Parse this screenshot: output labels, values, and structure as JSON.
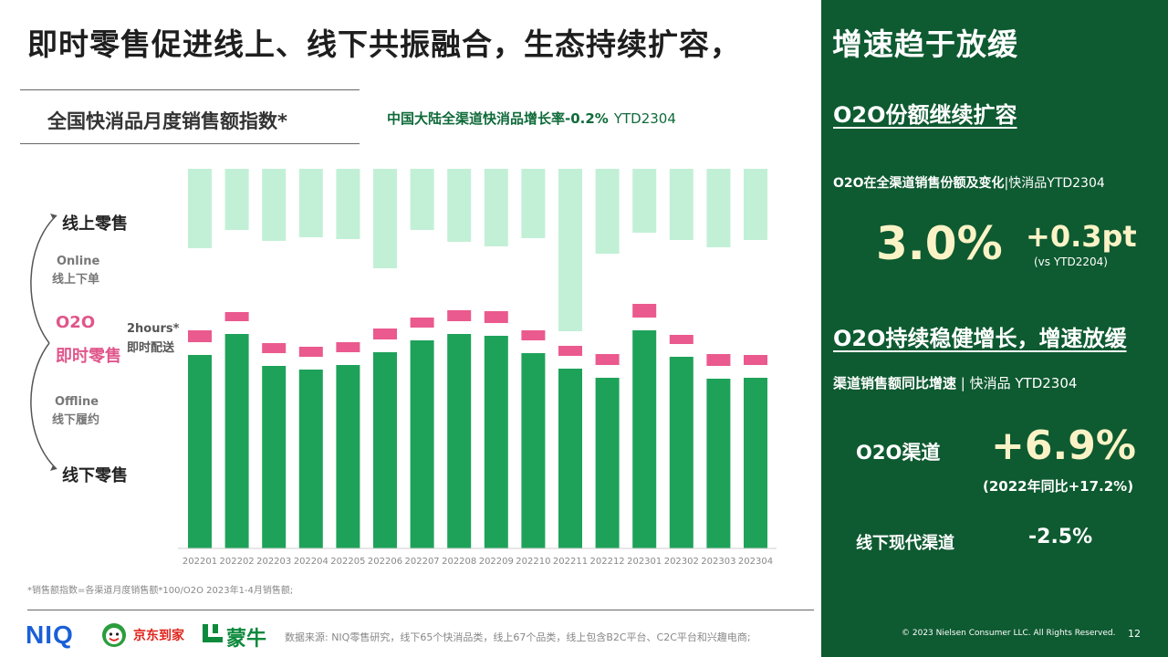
{
  "header": {
    "title_left": "即时零售促进线上、线下共振融合，生态持续扩容，",
    "title_right": "增速趋于放缓"
  },
  "chart_section": {
    "subtitle": "全国快消品月度销售额指数*",
    "growth_note_main": "中国大陆全渠道快消品增长率-0.2%",
    "growth_note_ytd": "YTD2304"
  },
  "side_labels": {
    "online_retail": "线上零售",
    "online_en": "Online",
    "online_cn": "线上下单",
    "o2o_en": "O2O",
    "o2o_cn": "即时零售",
    "hours": "2hours*",
    "instant_delivery": "即时配送",
    "offline_en": "Offline",
    "offline_cn": "线下履约",
    "offline_retail": "线下零售"
  },
  "chart_data": {
    "type": "bar",
    "categories": [
      "202201",
      "202202",
      "202203",
      "202204",
      "202205",
      "202206",
      "202207",
      "202208",
      "202209",
      "202210",
      "202211",
      "202212",
      "202301",
      "202302",
      "202303",
      "202304"
    ],
    "series": [
      {
        "values": [
          212,
          235,
          200,
          196,
          201,
          215,
          228,
          235,
          233,
          214,
          197,
          187,
          239,
          210,
          186,
          187
        ],
        "color": "#1ea25a"
      },
      {
        "values": [
          13,
          10,
          11,
          11,
          11,
          12,
          11,
          12,
          13,
          11,
          11,
          12,
          15,
          10,
          13,
          11
        ],
        "color": "#ea5a8e"
      },
      {
        "values": [
          87,
          67,
          79,
          75,
          77,
          109,
          67,
          80,
          85,
          76,
          178,
          93,
          70,
          78,
          86,
          78
        ],
        "color": "#c2f0d6"
      }
    ]
  },
  "footnote": "*销售额指数=各渠道月度销售额*100/O2O 2023年1-4月销售额;",
  "footer": {
    "logo_niq": "NIQ",
    "logo_jd": "京东到家",
    "logo_mengniu": "蒙牛",
    "source": "数据来源: NIQ零售研究，线下65个快消品类，线上67个品类，线上包含B2C平台、C2C平台和兴趣电商;",
    "copyright": "© 2023 Nielsen Consumer LLC. All Rights Reserved.",
    "page_number": "12"
  },
  "panel": {
    "share_heading": "O2O份额继续扩容",
    "share_label_bold": "O2O在全渠道销售份额及变化",
    "share_label_rest": "|快消品YTD2304",
    "share_value": "3.0%",
    "share_change": "+0.3pt",
    "share_change_note": "(vs YTD2204)",
    "growth_heading": "O2O持续稳健增长，增速放缓",
    "growth_label_bold": "渠道销售额同比增速",
    "growth_label_rest": "| 快消品 YTD2304",
    "o2o_channel": "O2O渠道",
    "o2o_growth": "+6.9%",
    "o2o_growth_note": "(2022年同比+17.2%)",
    "offline_channel": "线下现代渠道",
    "offline_growth": "-2.5%"
  },
  "colors": {
    "panel_bg": "#0e5a31",
    "offline_bar": "#1ea25a",
    "o2o_bar": "#ea5a8e",
    "online_bar": "#c2f0d6",
    "highlight_text": "#fbf3c6"
  }
}
